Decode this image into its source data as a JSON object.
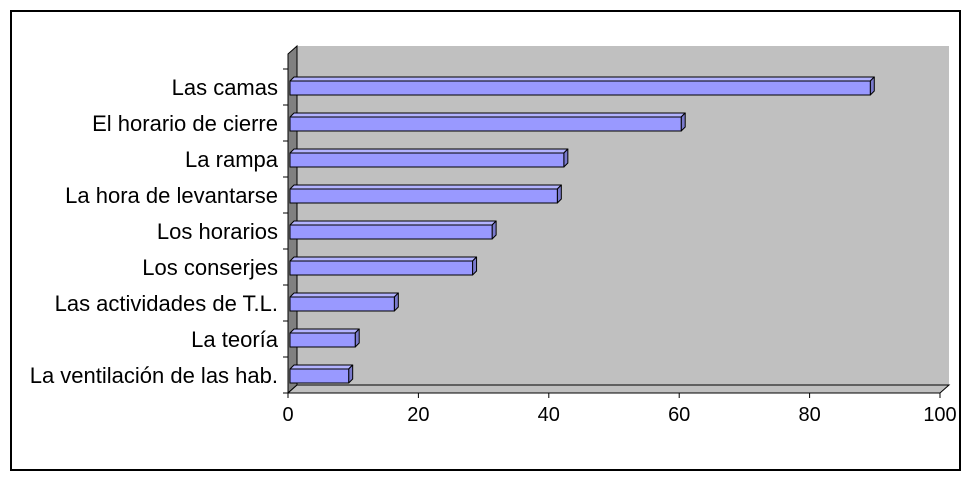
{
  "chart_data": {
    "type": "bar",
    "horizontal": true,
    "three_d": true,
    "categories": [
      "Las camas",
      "El horario de cierre",
      "La rampa",
      "La hora de levantarse",
      "Los horarios",
      "Los conserjes",
      "Las actividades de T.L.",
      "La teoría",
      "La ventilación de las hab."
    ],
    "values": [
      89,
      60,
      42,
      41,
      31,
      28,
      16,
      10,
      9
    ],
    "xlim": [
      0,
      100
    ],
    "x_ticks": [
      0,
      20,
      40,
      60,
      80,
      100
    ],
    "grid": false,
    "legend": false,
    "colors": {
      "bar_front": "#9999FF",
      "bar_top": "#B3B3FF",
      "bar_end": "#7A7ACC",
      "walls": "#C0C0C0",
      "side_wall": "#808080"
    }
  }
}
